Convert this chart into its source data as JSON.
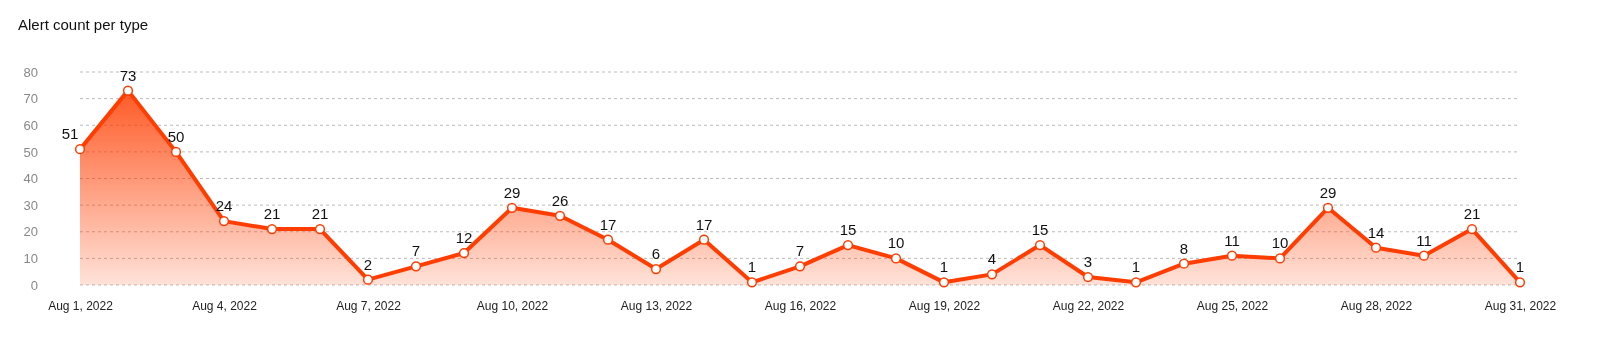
{
  "chart_data": {
    "type": "area",
    "title": "Alert count per type",
    "x": [
      "2022-08-01",
      "2022-08-02",
      "2022-08-03",
      "2022-08-04",
      "2022-08-05",
      "2022-08-06",
      "2022-08-07",
      "2022-08-08",
      "2022-08-09",
      "2022-08-10",
      "2022-08-11",
      "2022-08-12",
      "2022-08-13",
      "2022-08-14",
      "2022-08-15",
      "2022-08-16",
      "2022-08-17",
      "2022-08-18",
      "2022-08-19",
      "2022-08-20",
      "2022-08-21",
      "2022-08-22",
      "2022-08-23",
      "2022-08-24",
      "2022-08-25",
      "2022-08-26",
      "2022-08-27",
      "2022-08-28",
      "2022-08-29",
      "2022-08-30",
      "2022-08-31"
    ],
    "series": [
      {
        "color": "#ff3d00",
        "values": [
          51,
          73,
          50,
          24,
          21,
          21,
          2,
          7,
          12,
          29,
          26,
          17,
          6,
          17,
          1,
          7,
          15,
          10,
          1,
          4,
          15,
          3,
          1,
          8,
          11,
          10,
          29,
          14,
          11,
          21,
          1
        ]
      }
    ],
    "xlim": [
      "2022-08-01",
      "2022-08-31"
    ],
    "xticks": [
      {
        "value": "2022-08-01",
        "label": "Aug 1, 2022"
      },
      {
        "value": "2022-08-04",
        "label": "Aug 4, 2022"
      },
      {
        "value": "2022-08-07",
        "label": "Aug 7, 2022"
      },
      {
        "value": "2022-08-10",
        "label": "Aug 10, 2022"
      },
      {
        "value": "2022-08-13",
        "label": "Aug 13, 2022"
      },
      {
        "value": "2022-08-16",
        "label": "Aug 16, 2022"
      },
      {
        "value": "2022-08-19",
        "label": "Aug 19, 2022"
      },
      {
        "value": "2022-08-22",
        "label": "Aug 22, 2022"
      },
      {
        "value": "2022-08-25",
        "label": "Aug 25, 2022"
      },
      {
        "value": "2022-08-28",
        "label": "Aug 28, 2022"
      },
      {
        "value": "2022-08-31",
        "label": "Aug 31, 2022"
      }
    ],
    "ylim": [
      0,
      80
    ],
    "yticks": [
      0,
      10,
      20,
      30,
      40,
      50,
      60,
      70,
      80
    ],
    "grid": "y",
    "marker": "circle",
    "line_style": "solid",
    "data_labels": true
  }
}
